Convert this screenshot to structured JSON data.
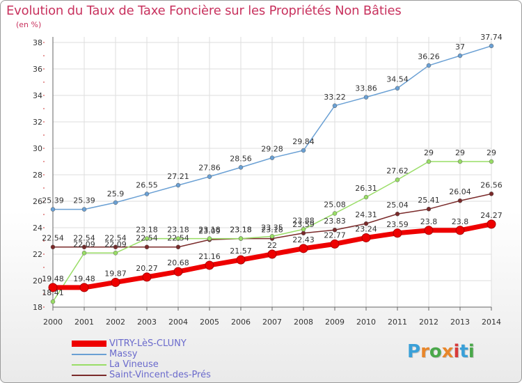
{
  "title": "Evolution du Taux de Taxe Foncière sur les Propriétés Non Bâties",
  "subtitle": "(en %)",
  "brand": {
    "letters": [
      "P",
      "r",
      "o",
      "x",
      "i",
      "t",
      "i"
    ],
    "colors": [
      "#3aa0d8",
      "#e8862a",
      "#4aa84a",
      "#e8862a",
      "#d83a3a",
      "#3aa0d8",
      "#4aa84a"
    ]
  },
  "chart_data": {
    "type": "line",
    "title": "Evolution du Taux de Taxe Foncière sur les Propriétés Non Bâties",
    "ylabel": "(en %)",
    "xlabel": "",
    "ylim": [
      18,
      38
    ],
    "yticks": [
      18,
      20,
      22,
      24,
      26,
      28,
      30,
      32,
      34,
      36,
      38
    ],
    "grid": true,
    "legend_position": "bottom-left",
    "x": [
      "2000",
      "2001",
      "2002",
      "2003",
      "2004",
      "2005",
      "2006",
      "2007",
      "2008",
      "2009",
      "2010",
      "2011",
      "2012",
      "2013",
      "2014"
    ],
    "series": [
      {
        "name": "VITRY-LèS-CLUNY",
        "color": "#ee0000",
        "width": 7,
        "values": [
          19.48,
          19.48,
          19.87,
          20.27,
          20.68,
          21.16,
          21.57,
          22,
          22.43,
          22.77,
          23.24,
          23.59,
          23.8,
          23.8,
          24.27
        ],
        "labels": [
          "19.48",
          "19.48",
          "19.87",
          "20.27",
          "20.68",
          "21.16",
          "21.57",
          "22",
          "22.43",
          "22.77",
          "23.24",
          "23.59",
          "23.8",
          "23.8",
          "24.27"
        ]
      },
      {
        "name": "Massy",
        "color": "#6aa0d4",
        "width": 1.5,
        "values": [
          25.39,
          25.39,
          25.9,
          26.55,
          27.21,
          27.86,
          28.56,
          29.28,
          29.84,
          33.22,
          33.86,
          34.54,
          36.26,
          37,
          37.74
        ],
        "labels": [
          "25.39",
          "25.39",
          "25.9",
          "26.55",
          "27.21",
          "27.86",
          "28.56",
          "29.28",
          "29.84",
          "33.22",
          "33.86",
          "34.54",
          "36.26",
          "37",
          "37.74"
        ]
      },
      {
        "name": "La Vineuse",
        "color": "#99dd66",
        "width": 1.5,
        "values": [
          18.41,
          22.09,
          22.09,
          23.18,
          23.18,
          23.18,
          23.18,
          23.35,
          23.88,
          25.08,
          26.31,
          27.62,
          29,
          29,
          29
        ],
        "labels": [
          "18.41",
          "22.09",
          "22.09",
          "23.18",
          "23.18",
          "23.18",
          "23.18",
          "23.35",
          "23.88",
          "25.08",
          "26.31",
          "27.62",
          "29",
          "29",
          "29"
        ]
      },
      {
        "name": "Saint-Vincent-des-Prés",
        "color": "#7a2a2a",
        "width": 1.5,
        "values": [
          22.54,
          22.54,
          22.54,
          22.54,
          22.54,
          23.09,
          23.18,
          23.18,
          23.59,
          23.83,
          24.31,
          25.04,
          25.41,
          26.04,
          26.56
        ],
        "labels": [
          "22.54",
          "22.54",
          "22.54",
          "22.54",
          "22.54",
          "23.09",
          "23.18",
          "23.18",
          "23.59",
          "23.83",
          "24.31",
          "25.04",
          "25.41",
          "26.04",
          "26.56"
        ]
      }
    ]
  }
}
